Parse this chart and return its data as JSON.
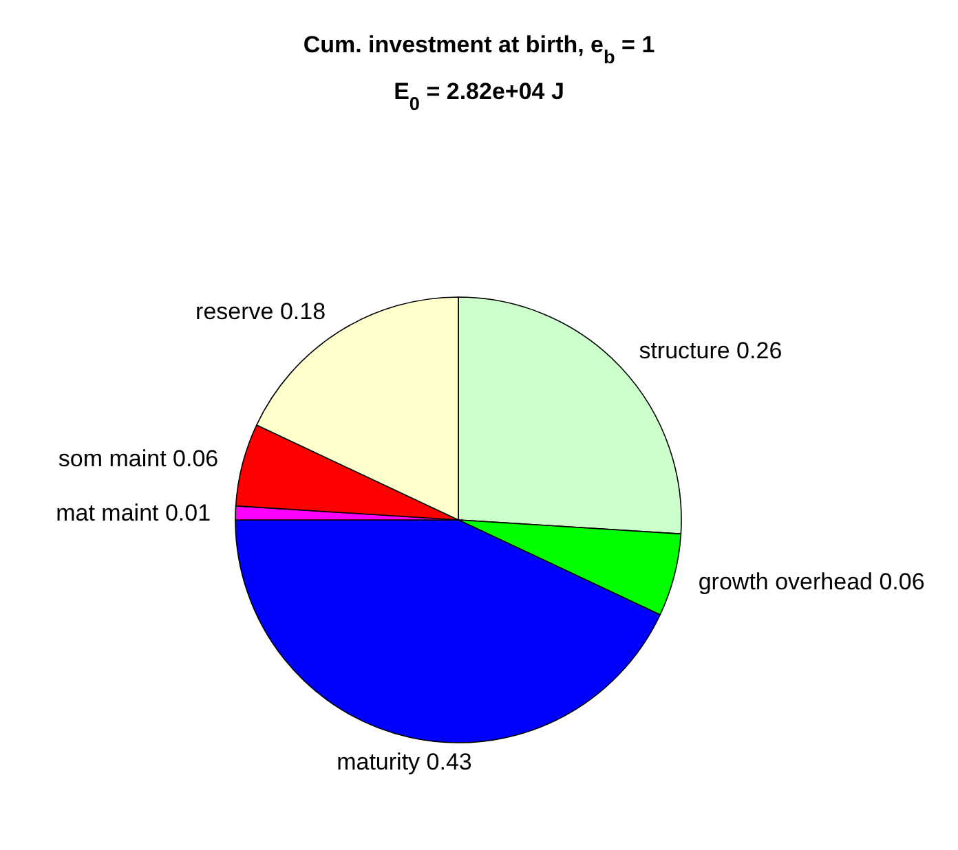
{
  "chart_data": {
    "type": "pie",
    "title": "Cum. investment at birth, e$_{b}$ = 1",
    "subtitle": "E$_{0}$ = 2.82e+04 J",
    "categories": [
      "structure 0.26",
      "growth overhead 0.06",
      "maturity 0.43",
      "mat maint 0.01",
      "som maint 0.06",
      "reserve 0.18"
    ],
    "values": [
      26,
      6,
      43,
      1,
      6,
      18
    ],
    "colors": [
      "#ccffcc",
      "#00ff00",
      "#0000ff",
      "#ff00ff",
      "#ff0000",
      "#ffffcc"
    ]
  }
}
